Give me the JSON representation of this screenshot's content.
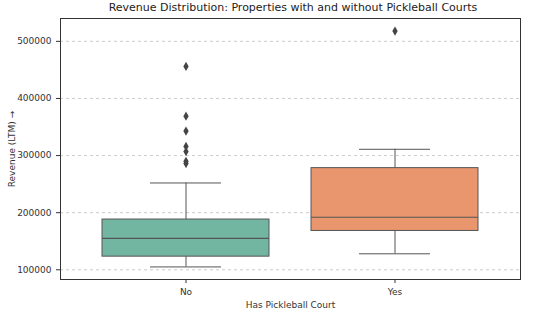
{
  "chart_data": {
    "type": "box",
    "title": "Revenue Distribution: Properties with and without Pickleball Courts",
    "x_label": "Has Pickleball Court",
    "y_label": "Revenue (LTM)",
    "categories": [
      "No",
      "Yes"
    ],
    "colors": [
      "#72b6a1",
      "#e9966e"
    ],
    "min": [
      105000,
      128000
    ],
    "q1": [
      123000,
      168000
    ],
    "median": [
      155000,
      192000
    ],
    "q3": [
      188000,
      278000
    ],
    "max": [
      252000,
      311000
    ],
    "outliers": [
      [
        456000,
        369000,
        343000,
        316000,
        307000,
        290000,
        286000
      ],
      [
        518000
      ]
    ],
    "marker": "diamond",
    "ylim": [
      83000,
      540000
    ],
    "yticks": [
      100000,
      200000,
      300000,
      400000,
      500000
    ],
    "grid": true
  }
}
